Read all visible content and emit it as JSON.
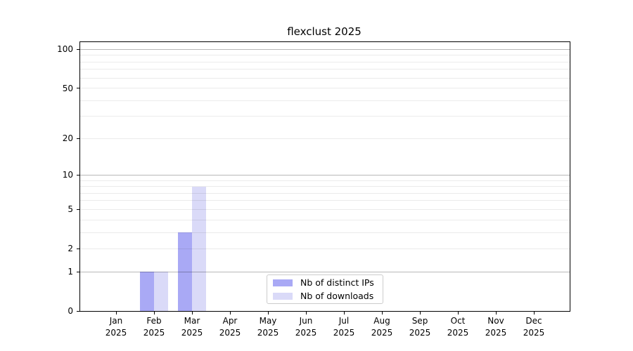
{
  "chart_data": {
    "type": "bar",
    "title": "flexclust 2025",
    "xlabel": "",
    "ylabel": "",
    "categories": [
      "Jan 2025",
      "Feb 2025",
      "Mar 2025",
      "Apr 2025",
      "May 2025",
      "Jun 2025",
      "Jul 2025",
      "Aug 2025",
      "Sep 2025",
      "Oct 2025",
      "Nov 2025",
      "Dec 2025"
    ],
    "series": [
      {
        "name": "Nb of distinct IPs",
        "color": "#a9a9f5",
        "values": [
          0,
          1,
          3,
          0,
          0,
          0,
          0,
          0,
          0,
          0,
          0,
          0
        ]
      },
      {
        "name": "Nb of downloads",
        "color": "#dadaf8",
        "values": [
          0,
          1,
          8,
          0,
          0,
          0,
          0,
          0,
          0,
          0,
          0,
          0
        ]
      }
    ],
    "y_scale": "log1p",
    "ylim": [
      0,
      114
    ],
    "yticks": [
      0,
      1,
      2,
      5,
      10,
      20,
      50,
      100
    ],
    "major_gridlines": [
      1,
      10,
      100
    ],
    "minor_gridlines": [
      2,
      3,
      4,
      5,
      6,
      7,
      8,
      9,
      20,
      30,
      40,
      50,
      60,
      70,
      80,
      90
    ],
    "grid": true,
    "legend_position": "lower-center-inside",
    "colors": {
      "grid_major": "rgba(0,0,0,0.28)",
      "grid_minor": "rgba(0,0,0,0.08)",
      "background": "#ffffff",
      "spine": "#000000"
    }
  }
}
